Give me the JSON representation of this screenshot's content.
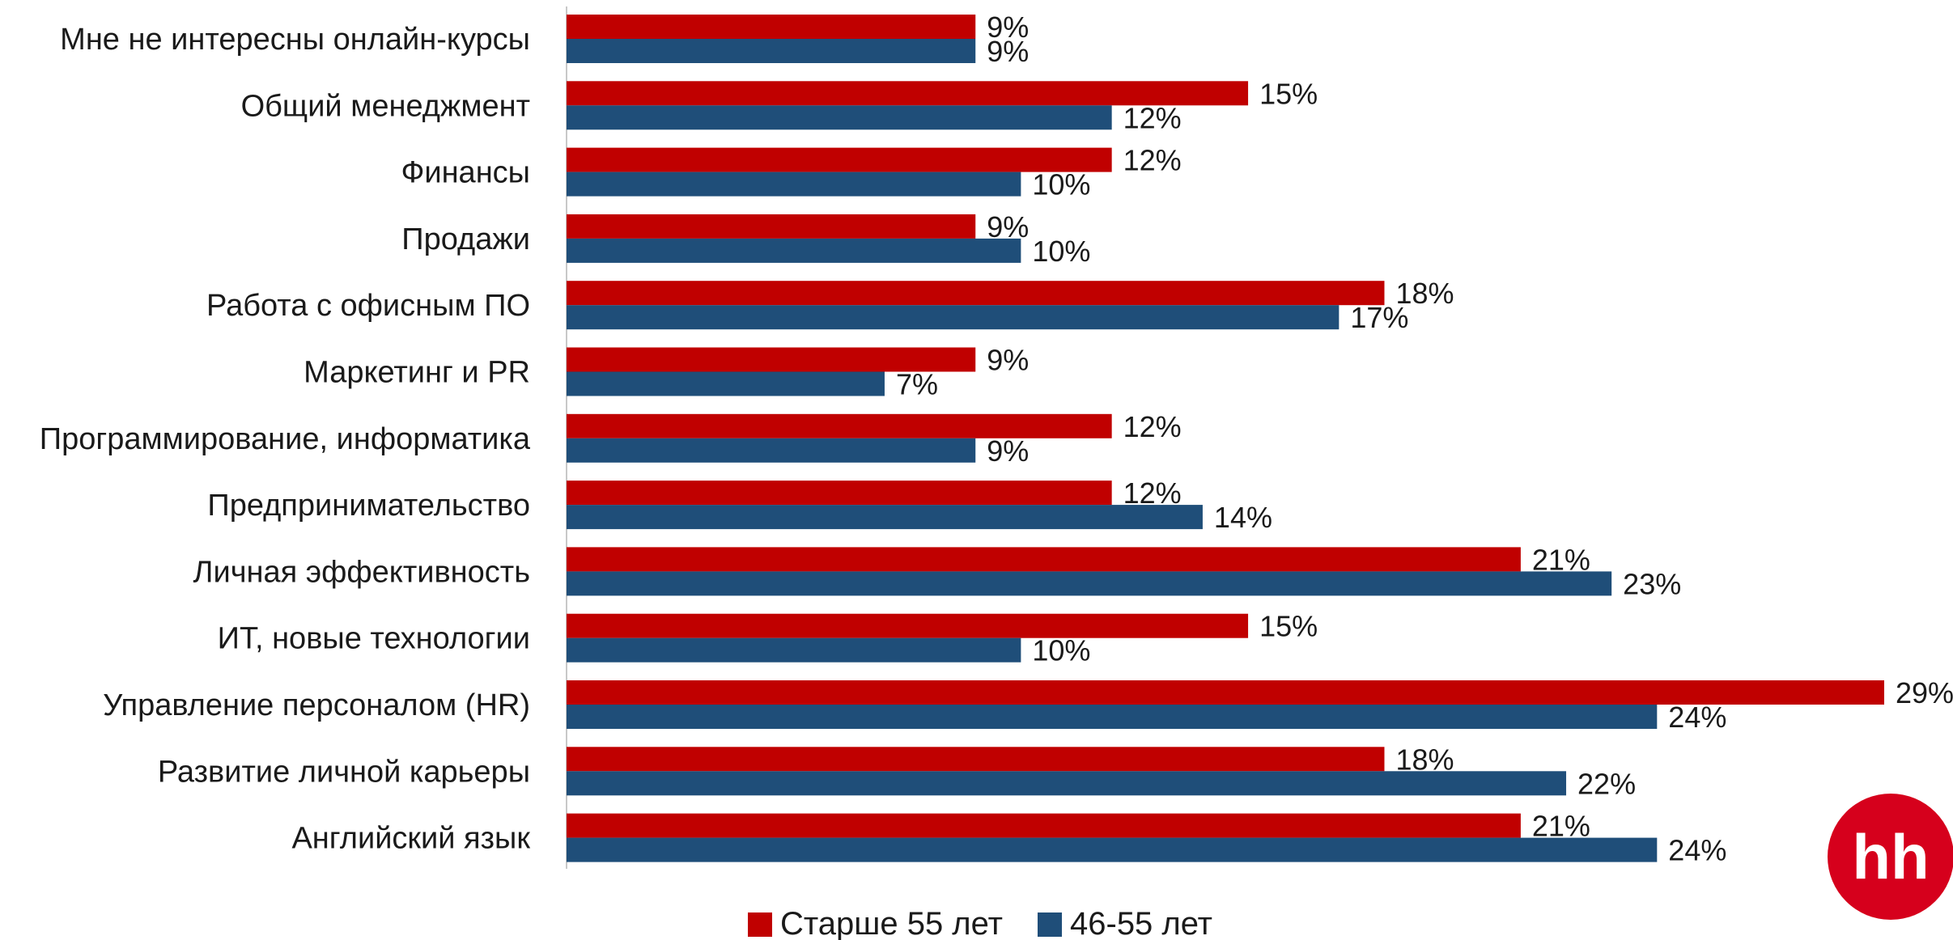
{
  "chart_data": {
    "type": "bar",
    "orientation": "horizontal",
    "categories": [
      "Мне не интересны онлайн-курсы",
      "Общий менеджмент",
      "Финансы",
      "Продажи",
      "Работа с офисным ПО",
      "Маркетинг и PR",
      "Программирование, информатика",
      "Предпринимательство",
      "Личная эффективность",
      "ИТ, новые технологии",
      "Управление персоналом (HR)",
      "Развитие личной карьеры",
      "Английский язык"
    ],
    "series": [
      {
        "name": "Старше 55 лет",
        "color": "#c00000",
        "values": [
          9,
          15,
          12,
          9,
          18,
          9,
          12,
          12,
          21,
          15,
          29,
          18,
          21
        ],
        "labels": [
          "9%",
          "15%",
          "12%",
          "9%",
          "18%",
          "9%",
          "12%",
          "12%",
          "21%",
          "15%",
          "29%",
          "18%",
          "21%"
        ]
      },
      {
        "name": "46-55 лет",
        "color": "#1f4e79",
        "values": [
          9,
          12,
          10,
          10,
          17,
          7,
          9,
          14,
          23,
          10,
          24,
          22,
          24
        ],
        "labels": [
          "9%",
          "12%",
          "10%",
          "10%",
          "17%",
          "7%",
          "9%",
          "14%",
          "23%",
          "10%",
          "24%",
          "22%",
          "24%"
        ]
      }
    ],
    "xlim": [
      0,
      29
    ],
    "value_unit": "%",
    "grid": false,
    "legend_position": "bottom"
  },
  "logo": {
    "text": "hh",
    "color": "#d6001c"
  }
}
